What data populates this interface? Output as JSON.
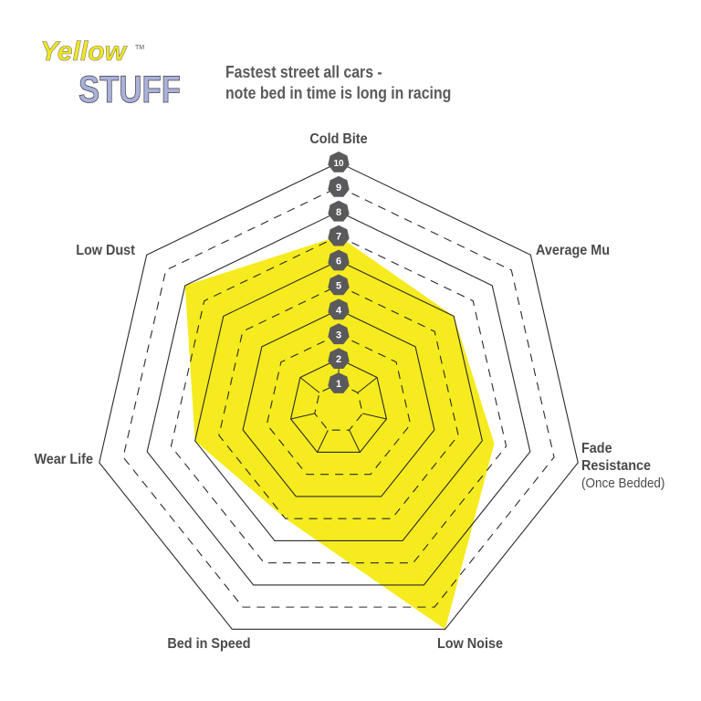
{
  "logo": {
    "text_top": "Yellow",
    "text_bottom": "STUFF",
    "mark": "TM"
  },
  "chart_data": {
    "type": "radar",
    "title": "Fastest street all cars -",
    "subtitle": "note bed in time is long in racing",
    "axes": [
      {
        "label": "Cold Bite",
        "sub": ""
      },
      {
        "label": "Average Mu",
        "sub": ""
      },
      {
        "label": "Fade",
        "label2": "Resistance",
        "sub": "(Once Bedded)"
      },
      {
        "label": "Low Noise",
        "sub": ""
      },
      {
        "label": "Bed in Speed",
        "sub": ""
      },
      {
        "label": "Wear Life",
        "sub": ""
      },
      {
        "label": "Low Dust",
        "sub": ""
      }
    ],
    "values": [
      7,
      6,
      6.5,
      10,
      5,
      6,
      8
    ],
    "rlim": [
      0,
      10
    ],
    "ticks": [
      "1",
      "2",
      "3",
      "4",
      "5",
      "6",
      "7",
      "8",
      "9",
      "10"
    ],
    "fill_color": "#f5eb1e",
    "tick_badge_color": "#5a5a5c",
    "grid": true
  }
}
